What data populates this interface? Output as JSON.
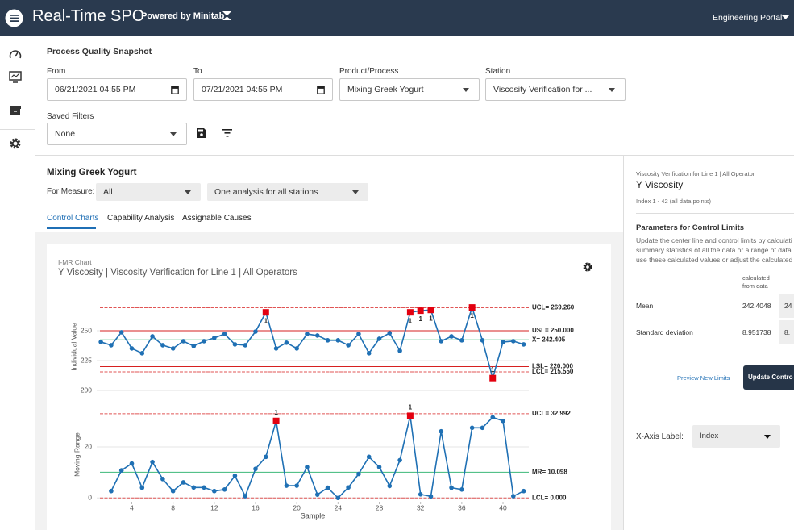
{
  "header": {
    "title": "Real-Time SPC",
    "powered_by": "Powered by Minitab",
    "portal": "Engineering Portal"
  },
  "filters": {
    "title": "Process Quality Snapshot",
    "from_label": "From",
    "from_value": "06/21/2021 04:55 PM",
    "to_label": "To",
    "to_value": "07/21/2021 04:55 PM",
    "product_label": "Product/Process",
    "product_value": "Mixing Greek Yogurt",
    "station_label": "Station",
    "station_value": "Viscosity Verification for ...",
    "saved_label": "Saved Filters",
    "saved_value": "None"
  },
  "analysis": {
    "title": "Mixing Greek Yogurt",
    "measure_label": "For Measure:",
    "measure_value": "All",
    "stations_value": "One analysis for all stations",
    "tabs": [
      "Control Charts",
      "Capability Analysis",
      "Assignable Causes"
    ]
  },
  "card": {
    "subtitle": "I-MR Chart",
    "title": "Y Viscosity | Viscosity Verification for Line 1 | All Operators"
  },
  "chart_data": [
    {
      "type": "line",
      "y_label": "Individual Value",
      "color": "#1f70b4",
      "flag_color": "#e3000f",
      "flag_position": "inside",
      "grid": true,
      "x": [
        1,
        2,
        3,
        4,
        5,
        6,
        7,
        8,
        9,
        10,
        11,
        12,
        13,
        14,
        15,
        16,
        17,
        18,
        19,
        20,
        21,
        22,
        23,
        24,
        25,
        26,
        27,
        28,
        29,
        30,
        31,
        32,
        33,
        34,
        35,
        36,
        37,
        38,
        39,
        40,
        41,
        42
      ],
      "values": [
        240.6,
        237.9,
        248.7,
        235.2,
        231.2,
        245.3,
        237.9,
        235.2,
        241.3,
        237.2,
        241.3,
        244,
        247.3,
        238.6,
        237.9,
        249.3,
        265.4,
        235.2,
        240,
        235.2,
        247.3,
        246,
        242,
        242,
        237.9,
        247.3,
        231.2,
        243.3,
        248,
        233.2,
        265.4,
        266.8,
        267.4,
        241.3,
        245.3,
        242,
        269.5,
        242,
        210.4,
        240.6,
        241.3,
        238.6
      ],
      "flag_labels": [
        null,
        null,
        null,
        null,
        null,
        null,
        null,
        null,
        null,
        null,
        null,
        null,
        null,
        null,
        null,
        null,
        "1",
        null,
        null,
        null,
        null,
        null,
        null,
        null,
        null,
        null,
        null,
        null,
        null,
        null,
        "1",
        "1",
        "1",
        null,
        null,
        null,
        "1",
        null,
        "1",
        null,
        null,
        null
      ],
      "xlim": [
        0.6,
        42.5
      ],
      "ylim": [
        196,
        277
      ],
      "yticks": [
        200,
        225,
        250
      ],
      "reference_lines": [
        {
          "label": "UCL= 269.260",
          "value": 269.26,
          "color": "#e05555",
          "dashed": true
        },
        {
          "label": "USL= 250.000",
          "value": 250,
          "color": "#d62020",
          "dashed": false
        },
        {
          "label": "X̄= 242.405",
          "value": 242.405,
          "color": "#3cb878",
          "dashed": false
        },
        {
          "label": "LSL= 220.000",
          "value": 220,
          "color": "#d62020",
          "dashed": false
        },
        {
          "label": "LCL= 215.550",
          "value": 215.55,
          "color": "#e05555",
          "dashed": true
        }
      ]
    },
    {
      "type": "line",
      "y_label": "Moving Range",
      "x_label": "Sample",
      "color": "#1f70b4",
      "flag_color": "#e3000f",
      "flag_position": "above",
      "grid": true,
      "x": [
        1,
        2,
        3,
        4,
        5,
        6,
        7,
        8,
        9,
        10,
        11,
        12,
        13,
        14,
        15,
        16,
        17,
        18,
        19,
        20,
        21,
        22,
        23,
        24,
        25,
        26,
        27,
        28,
        29,
        30,
        31,
        32,
        33,
        34,
        35,
        36,
        37,
        38,
        39,
        40,
        41,
        42
      ],
      "values": [
        null,
        2.7,
        10.8,
        13.5,
        4,
        14.1,
        7.4,
        2.7,
        6.1,
        4.1,
        4.1,
        2.7,
        3.3,
        8.7,
        0.7,
        11.4,
        16.1,
        30.2,
        4.8,
        4.8,
        12.1,
        1.3,
        4,
        0,
        4.1,
        9.4,
        16.1,
        12.1,
        4.7,
        14.8,
        32.2,
        1.4,
        0.6,
        26.1,
        4,
        3.3,
        27.5,
        27.5,
        31.6,
        30.2,
        0.7,
        2.7
      ],
      "flag_labels": [
        null,
        null,
        null,
        null,
        null,
        null,
        null,
        null,
        null,
        null,
        null,
        null,
        null,
        null,
        null,
        null,
        null,
        "1",
        null,
        null,
        null,
        null,
        null,
        null,
        null,
        null,
        null,
        null,
        null,
        null,
        "1",
        null,
        null,
        null,
        null,
        null,
        null,
        null,
        null,
        null,
        null,
        null
      ],
      "xlim": [
        0.6,
        42.5
      ],
      "ylim": [
        -1.5,
        35.5
      ],
      "xticks": [
        4,
        8,
        12,
        16,
        20,
        24,
        28,
        32,
        36,
        40
      ],
      "yticks": [
        0,
        20
      ],
      "reference_lines": [
        {
          "label": "UCL= 32.992",
          "value": 32.992,
          "color": "#e05555",
          "dashed": true
        },
        {
          "label": "MR= 10.098",
          "value": 10.098,
          "color": "#3cb878",
          "dashed": false
        },
        {
          "label": "LCL= 0.000",
          "value": 0,
          "color": "#e05555",
          "dashed": true
        }
      ]
    }
  ],
  "panel": {
    "station": "Viscosity Verification for Line 1 | All Operator",
    "title": "Y Viscosity",
    "range": "Index 1 - 42 (all data points)",
    "params_title": "Parameters for Control Limits",
    "description": [
      "Update the center line and control limits by calculati",
      "summary statistics of all the data or a range of data.",
      "use these calculated values or adjust the calculated v"
    ],
    "column_header": [
      "calculated",
      "from data"
    ],
    "rows": [
      [
        "Mean",
        "242.4048",
        "24"
      ],
      [
        "Standard deviation",
        "8.951738",
        "8."
      ]
    ],
    "preview": "Preview New Limits",
    "update": "Update Contro",
    "xaxis_label": "X-Axis Label:",
    "xaxis_value": "Index"
  }
}
